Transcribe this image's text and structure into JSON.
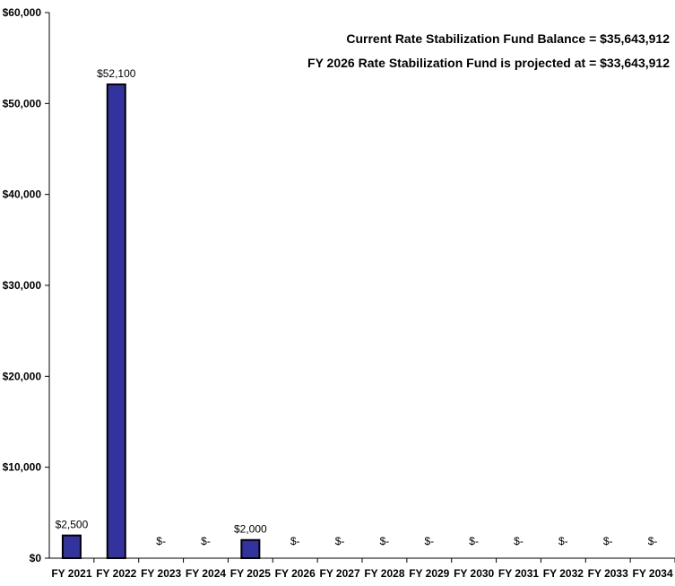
{
  "chart_data": {
    "type": "bar",
    "categories": [
      "FY 2021",
      "FY 2022",
      "FY 2023",
      "FY 2024",
      "FY 2025",
      "FY 2026",
      "FY 2027",
      "FY 2028",
      "FY 2029",
      "FY 2030",
      "FY 2031",
      "FY 2032",
      "FY 2033",
      "FY 2034"
    ],
    "values": [
      2500,
      52100,
      0,
      0,
      2000,
      0,
      0,
      0,
      0,
      0,
      0,
      0,
      0,
      0
    ],
    "data_labels": [
      "$2,500",
      "$52,100",
      "$-",
      "$-",
      "$2,000",
      "$-",
      "$-",
      "$-",
      "$-",
      "$-",
      "$-",
      "$-",
      "$-",
      "$-"
    ],
    "title": "",
    "xlabel": "",
    "ylabel": "",
    "ylim": [
      0,
      60000
    ],
    "y_ticks": [
      0,
      10000,
      20000,
      30000,
      40000,
      50000,
      60000
    ],
    "y_tick_labels": [
      "$0",
      "$10,000",
      "$20,000",
      "$30,000",
      "$40,000",
      "$50,000",
      "$60,000"
    ],
    "annotations": [
      "Current Rate Stabilization Fund Balance = $35,643,912",
      "FY 2026 Rate Stabilization Fund is projected at = $33,643,912"
    ],
    "grid": false,
    "legend": "none",
    "colors": {
      "bar_fill": "#3333a0",
      "bar_stroke": "#000000",
      "axis": "#000000"
    }
  }
}
